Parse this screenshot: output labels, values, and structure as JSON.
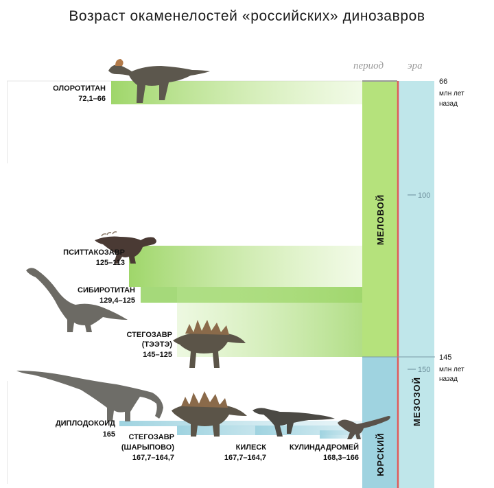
{
  "title": "Возраст окаменелостей «российских» динозавров",
  "columns": {
    "period": "период",
    "era": "эра"
  },
  "time_scale": {
    "top_marker": {
      "value": "66",
      "line1": "млн лет",
      "line2": "назад"
    },
    "mid_marker": {
      "value": "145",
      "line1": "млн лет",
      "line2": "назад"
    },
    "ticks": [
      "100",
      "150"
    ]
  },
  "periods": [
    {
      "name": "МЕЛОВОЙ",
      "range_ma": [
        66,
        145
      ],
      "color": "#b5e27c"
    },
    {
      "name": "ЮРСКИЙ",
      "range_ma": [
        145,
        170
      ],
      "color": "#9fd3e0"
    }
  ],
  "eras": [
    {
      "name": "МЕЗОЗОЙ",
      "range_ma": [
        66,
        170
      ],
      "color": "#bfe6ea"
    }
  ],
  "boundary_line_color": "#e05a5a",
  "dinosaurs": [
    {
      "name": "ОЛОРОТИТАН",
      "range_label": "72,1–66",
      "start_ma": 72.1,
      "end_ma": 66,
      "period": "cretaceous",
      "picture": "olorotitan-drawing"
    },
    {
      "name": "ПСИТТАКОЗАВР",
      "range_label": "125–113",
      "start_ma": 125,
      "end_ma": 113,
      "period": "cretaceous",
      "picture": "psittacosaurus-drawing"
    },
    {
      "name": "СИБИРОТИТАН",
      "range_label": "129,4–125",
      "start_ma": 129.4,
      "end_ma": 125,
      "period": "cretaceous",
      "picture": "sibirotitan-drawing"
    },
    {
      "name": "СТЕГОЗАВР",
      "name_line2": "(ТЭЭТЭ)",
      "range_label": "145–125",
      "start_ma": 145,
      "end_ma": 125,
      "period": "cretaceous",
      "picture": "stegosaurus-teete-drawing"
    },
    {
      "name": "ДИПЛОДОКОИД",
      "range_label": "165",
      "start_ma": 165,
      "end_ma": 165,
      "period": "jurassic",
      "picture": "diplodocoid-drawing"
    },
    {
      "name": "СТЕГОЗАВР",
      "name_line2": "(ШАРЫПОВО)",
      "range_label": "167,7–164,7",
      "start_ma": 167.7,
      "end_ma": 164.7,
      "period": "jurassic",
      "picture": "stegosaurus-sharypovo-drawing"
    },
    {
      "name": "КИЛЕСК",
      "range_label": "167,7–164,7",
      "start_ma": 167.7,
      "end_ma": 164.7,
      "period": "jurassic",
      "picture": "kileskus-drawing"
    },
    {
      "name": "КУЛИНДАДРОМЕЙ",
      "range_label": "168,3–166",
      "start_ma": 168.3,
      "end_ma": 166,
      "period": "jurassic",
      "picture": "kulindadromeus-drawing"
    }
  ]
}
